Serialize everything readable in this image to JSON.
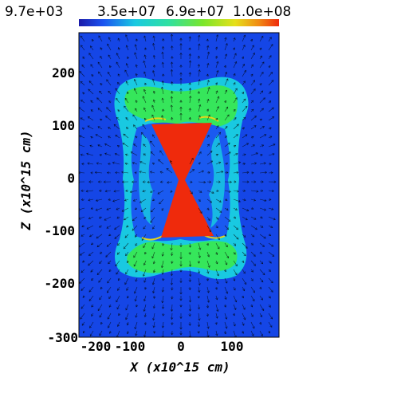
{
  "colorbar": {
    "labels": [
      "9.7e+03",
      "3.5e+07",
      "6.9e+07",
      "1.0e+08"
    ],
    "min": 9700,
    "max": 100000000
  },
  "axes": {
    "x": {
      "title": "X (x10^15 cm)",
      "range": [
        -200,
        190
      ],
      "ticks": [
        "-200",
        "-100",
        "0",
        "100"
      ]
    },
    "y": {
      "title": "Z (x10^15 cm)",
      "range": [
        -300,
        290
      ],
      "ticks": [
        "200",
        "100",
        "0",
        "-100",
        "-200",
        "-300"
      ]
    }
  },
  "colors": {
    "background": "#1546e6",
    "cyan": "#19c9e1",
    "green": "#36e65b",
    "yellow": "#e6d61a",
    "red": "#ef2a0c",
    "arrow": "#000000"
  }
}
